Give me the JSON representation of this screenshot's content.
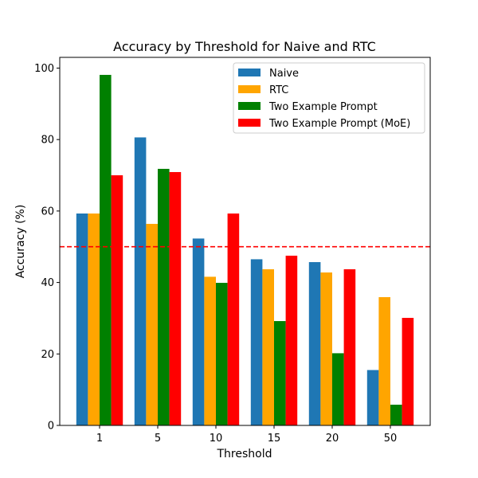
{
  "chart_data": {
    "type": "bar",
    "title": "Accuracy by Threshold for Naive and RTC",
    "xlabel": "Threshold",
    "ylabel": "Accuracy (%)",
    "categories": [
      "1",
      "5",
      "10",
      "15",
      "20",
      "50"
    ],
    "series": [
      {
        "name": "Naive",
        "color": "#1f77b4",
        "values": [
          59.3,
          80.6,
          52.3,
          46.5,
          45.7,
          15.5
        ]
      },
      {
        "name": "RTC",
        "color": "#ffa500",
        "values": [
          59.3,
          56.4,
          41.6,
          43.7,
          42.8,
          35.9
        ]
      },
      {
        "name": "Two Example Prompt",
        "color": "#008000",
        "values": [
          98.1,
          71.8,
          39.9,
          29.2,
          20.2,
          5.8
        ]
      },
      {
        "name": "Two Example Prompt (MoE)",
        "color": "#ff0000",
        "values": [
          70.0,
          70.9,
          59.3,
          47.5,
          43.7,
          30.1
        ]
      }
    ],
    "ylim": [
      0,
      103
    ],
    "yticks": [
      0,
      20,
      40,
      60,
      80,
      100
    ],
    "reference_line": {
      "value": 50,
      "color": "#ff0000",
      "style": "dashed"
    },
    "legend_position": "top-right",
    "grid": false
  }
}
